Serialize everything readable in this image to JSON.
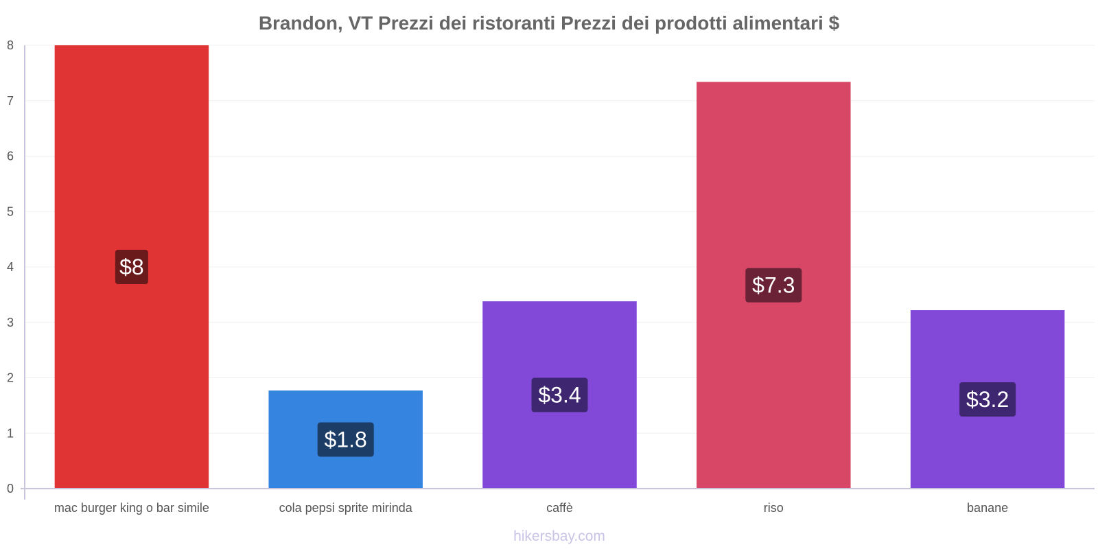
{
  "chart_data": {
    "type": "bar",
    "title": "Brandon, VT Prezzi dei ristoranti Prezzi dei prodotti alimentari $",
    "xlabel": "",
    "ylabel": "",
    "ylim": [
      0,
      8
    ],
    "yticks": [
      "0",
      "1",
      "2",
      "3",
      "4",
      "5",
      "6",
      "7",
      "8"
    ],
    "grid": true,
    "categories": [
      "mac burger king o bar simile",
      "cola pepsi sprite mirinda",
      "caffè",
      "riso",
      "banane"
    ],
    "values": [
      8,
      1.77,
      3.38,
      7.34,
      3.22
    ],
    "value_labels": [
      "$8",
      "$1.8",
      "$3.4",
      "$7.3",
      "$3.2"
    ],
    "bar_colors": [
      "#e03434",
      "#3584e0",
      "#8249d8",
      "#d84866",
      "#8249d8"
    ],
    "label_bg_colors": [
      "#6b1a1c",
      "#1c3d66",
      "#3f2670",
      "#6b2237",
      "#3f2670"
    ]
  },
  "watermark": "hikersbay.com"
}
